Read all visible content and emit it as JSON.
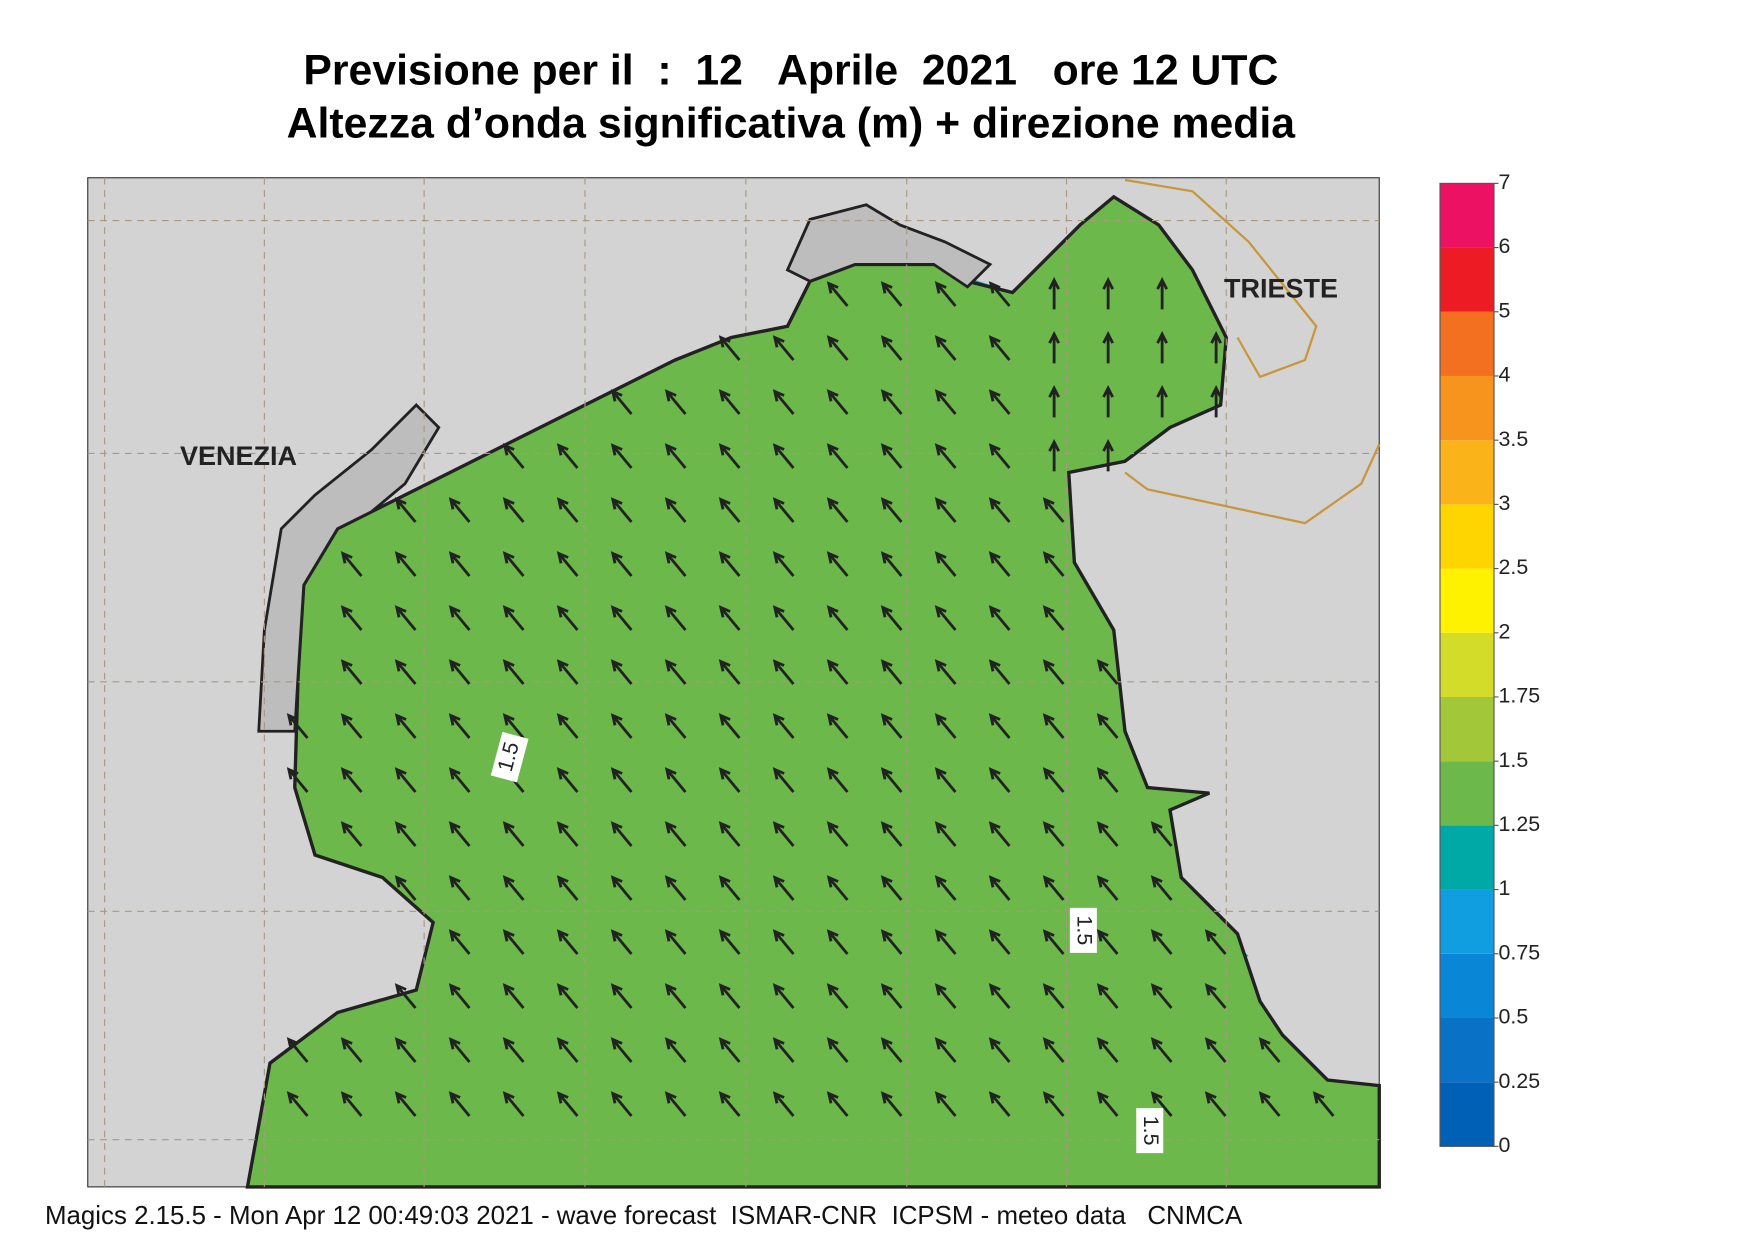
{
  "title": "Previsione per il  :  12   Aprile  2021   ore 12 UTC",
  "subtitle": "Altezza d’onda significativa (m) + direzione media",
  "places": [
    "VENEZIA",
    "TRIESTE"
  ],
  "contour_labels": [
    1.5,
    1.5,
    1.5
  ],
  "colorbar": {
    "ticks": [
      0,
      0.25,
      0.5,
      0.75,
      1,
      1.25,
      1.5,
      1.75,
      2,
      2.5,
      3,
      3.5,
      4,
      5,
      6,
      7
    ],
    "colors": [
      "#0060b5",
      "#0a72c6",
      "#0a86d6",
      "#119ee0",
      "#00a9a6",
      "#6cb84a",
      "#a2c83a",
      "#d4dc2a",
      "#fff200",
      "#ffd500",
      "#fbb31a",
      "#f7941d",
      "#f37021",
      "#ed1c24",
      "#ed1164"
    ]
  },
  "footer": "Magics 2.15.5 - Mon Apr 12 00:49:03 2021 - wave forecast  ISMAR-CNR  ICPSM - meteo data   CNMCA"
}
